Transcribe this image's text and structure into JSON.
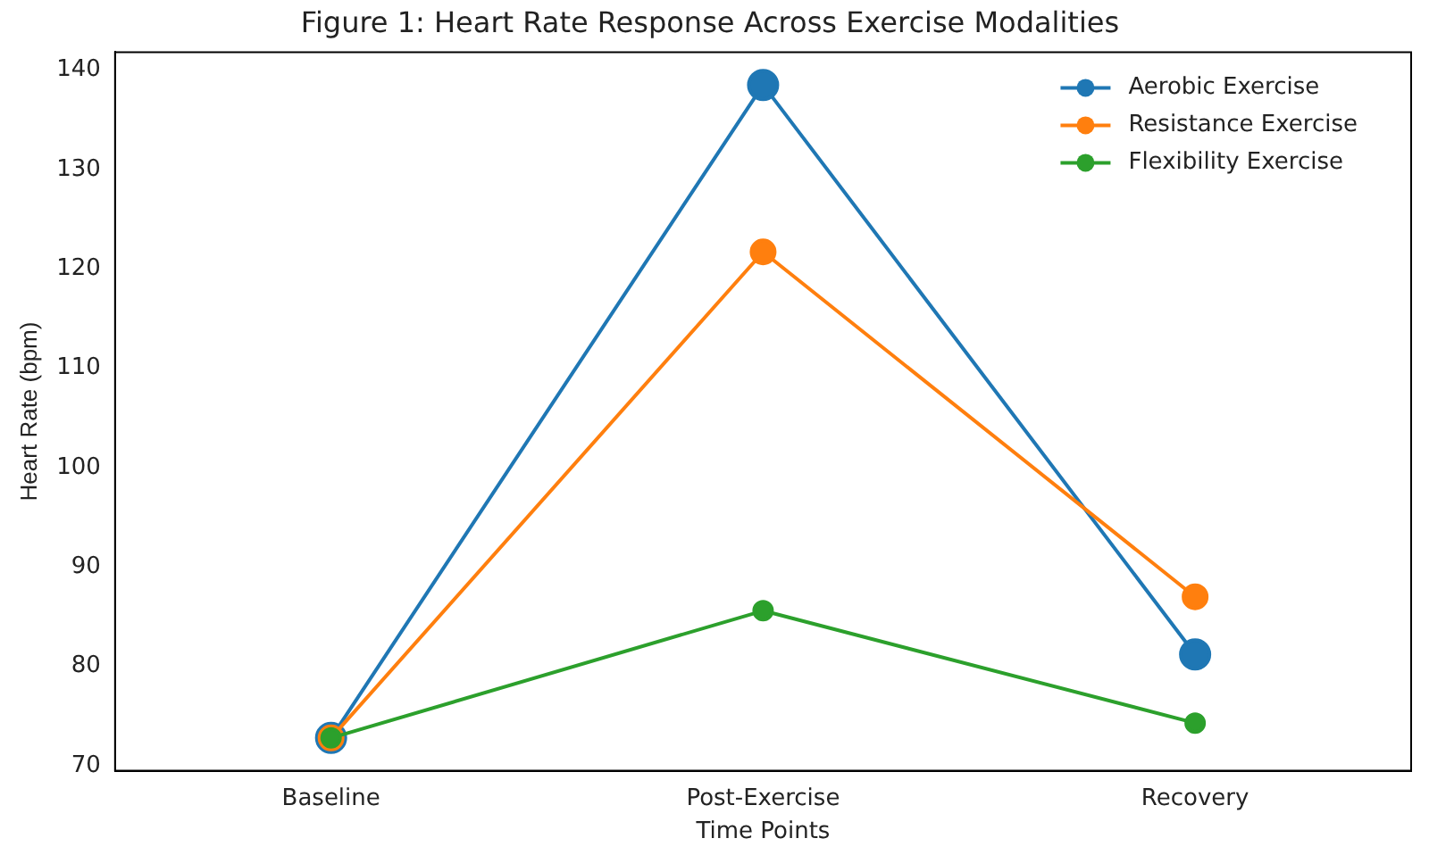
{
  "chart_data": {
    "type": "line",
    "title": "Figure 1: Heart Rate Response Across Exercise Modalities",
    "xlabel": "Time Points",
    "ylabel": "Heart Rate (bpm)",
    "categories": [
      "Baseline",
      "Post-Exercise",
      "Recovery"
    ],
    "series": [
      {
        "name": "Aerobic Exercise",
        "color": "#1f77b4",
        "values": [
          72.8,
          138.5,
          81.2
        ]
      },
      {
        "name": "Resistance Exercise",
        "color": "#ff7f0e",
        "values": [
          72.8,
          121.7,
          87.0
        ]
      },
      {
        "name": "Flexibility Exercise",
        "color": "#2ca02c",
        "values": [
          72.8,
          85.6,
          74.3
        ]
      }
    ],
    "ylim": [
      69.5,
      141.8
    ],
    "yticks": [
      70,
      80,
      90,
      100,
      110,
      120,
      130,
      140
    ],
    "grid": false,
    "legend": "top right",
    "marker": "circle",
    "line_style": "solid"
  }
}
